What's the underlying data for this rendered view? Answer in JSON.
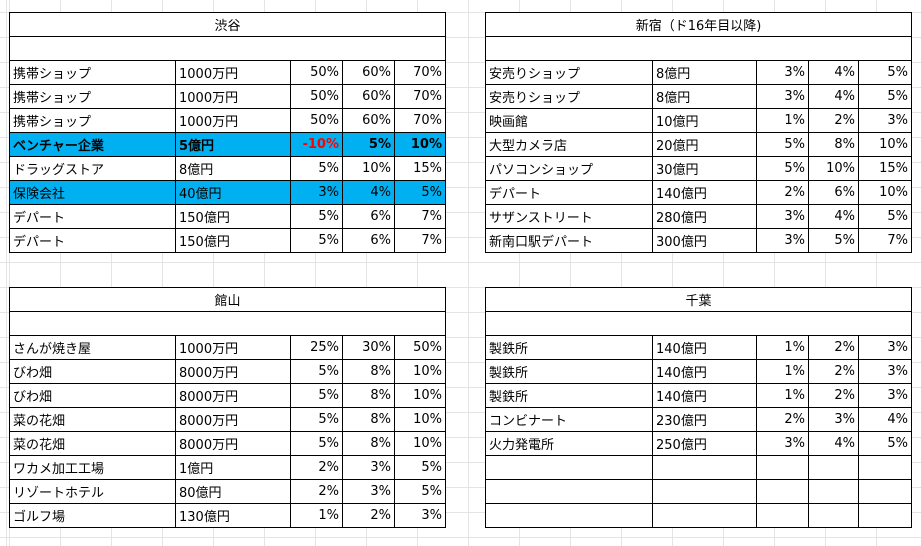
{
  "blocks": [
    {
      "title": "渋谷",
      "rows": [
        {
          "name": "携帯ショップ",
          "amount": "1000万円",
          "p1": "50%",
          "p2": "60%",
          "p3": "70%"
        },
        {
          "name": "携帯ショップ",
          "amount": "1000万円",
          "p1": "50%",
          "p2": "60%",
          "p3": "70%"
        },
        {
          "name": "携帯ショップ",
          "amount": "1000万円",
          "p1": "50%",
          "p2": "60%",
          "p3": "70%"
        },
        {
          "name": "ベンチャー企業",
          "amount": "5億円",
          "p1": "-10%",
          "p2": "5%",
          "p3": "10%",
          "highlight": "#00b0f0",
          "bold": true
        },
        {
          "name": "ドラッグストア",
          "amount": "8億円",
          "p1": "5%",
          "p2": "10%",
          "p3": "15%"
        },
        {
          "name": "保険会社",
          "amount": "40億円",
          "p1": "3%",
          "p2": "4%",
          "p3": "5%",
          "highlight": "#00b0f0"
        },
        {
          "name": "デパート",
          "amount": "150億円",
          "p1": "5%",
          "p2": "6%",
          "p3": "7%"
        },
        {
          "name": "デパート",
          "amount": "150億円",
          "p1": "5%",
          "p2": "6%",
          "p3": "7%"
        }
      ]
    },
    {
      "title": "新宿（ド16年目以降)",
      "rows": [
        {
          "name": "安売りショップ",
          "amount": "8億円",
          "p1": "3%",
          "p2": "4%",
          "p3": "5%"
        },
        {
          "name": "安売りショップ",
          "amount": "8億円",
          "p1": "3%",
          "p2": "4%",
          "p3": "5%"
        },
        {
          "name": "映画館",
          "amount": "10億円",
          "p1": "1%",
          "p2": "2%",
          "p3": "3%"
        },
        {
          "name": "大型カメラ店",
          "amount": "20億円",
          "p1": "5%",
          "p2": "8%",
          "p3": "10%"
        },
        {
          "name": "パソコンショップ",
          "amount": "30億円",
          "p1": "5%",
          "p2": "10%",
          "p3": "15%"
        },
        {
          "name": "デパート",
          "amount": "140億円",
          "p1": "2%",
          "p2": "6%",
          "p3": "10%"
        },
        {
          "name": "サザンストリート",
          "amount": "280億円",
          "p1": "3%",
          "p2": "4%",
          "p3": "5%"
        },
        {
          "name": "新南口駅デパート",
          "amount": "300億円",
          "p1": "3%",
          "p2": "5%",
          "p3": "7%"
        }
      ]
    },
    {
      "title": "館山",
      "rows": [
        {
          "name": "さんが焼き屋",
          "amount": "1000万円",
          "p1": "25%",
          "p2": "30%",
          "p3": "50%"
        },
        {
          "name": "びわ畑",
          "amount": "8000万円",
          "p1": "5%",
          "p2": "8%",
          "p3": "10%"
        },
        {
          "name": "びわ畑",
          "amount": "8000万円",
          "p1": "5%",
          "p2": "8%",
          "p3": "10%"
        },
        {
          "name": "菜の花畑",
          "amount": "8000万円",
          "p1": "5%",
          "p2": "8%",
          "p3": "10%"
        },
        {
          "name": "菜の花畑",
          "amount": "8000万円",
          "p1": "5%",
          "p2": "8%",
          "p3": "10%"
        },
        {
          "name": "ワカメ加工工場",
          "amount": "1億円",
          "p1": "2%",
          "p2": "3%",
          "p3": "5%"
        },
        {
          "name": "リゾートホテル",
          "amount": "80億円",
          "p1": "2%",
          "p2": "3%",
          "p3": "5%"
        },
        {
          "name": "ゴルフ場",
          "amount": "130億円",
          "p1": "1%",
          "p2": "2%",
          "p3": "3%"
        }
      ]
    },
    {
      "title": "千葉",
      "rows": [
        {
          "name": "製鉄所",
          "amount": "140億円",
          "p1": "1%",
          "p2": "2%",
          "p3": "3%"
        },
        {
          "name": "製鉄所",
          "amount": "140億円",
          "p1": "1%",
          "p2": "2%",
          "p3": "3%"
        },
        {
          "name": "製鉄所",
          "amount": "140億円",
          "p1": "1%",
          "p2": "2%",
          "p3": "3%"
        },
        {
          "name": "コンビナート",
          "amount": "230億円",
          "p1": "2%",
          "p2": "3%",
          "p3": "4%"
        },
        {
          "name": "火力発電所",
          "amount": "250億円",
          "p1": "3%",
          "p2": "4%",
          "p3": "5%"
        },
        {
          "name": "",
          "amount": "",
          "p1": "",
          "p2": "",
          "p3": ""
        },
        {
          "name": "",
          "amount": "",
          "p1": "",
          "p2": "",
          "p3": ""
        },
        {
          "name": "",
          "amount": "",
          "p1": "",
          "p2": "",
          "p3": ""
        }
      ]
    }
  ],
  "colors": {
    "highlight": "#00b0f0",
    "negative": "#ff0000"
  }
}
